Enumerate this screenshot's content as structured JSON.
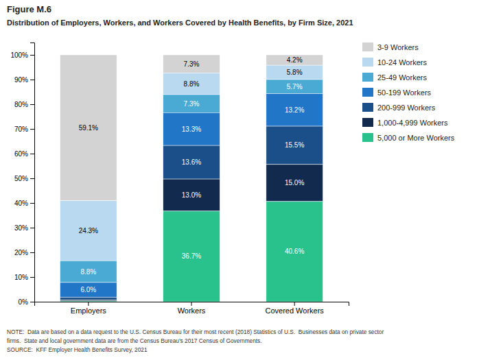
{
  "chart_data": {
    "type": "bar",
    "stacked": true,
    "title": "Figure M.6",
    "subtitle": "Distribution of Employers, Workers, and Workers Covered by Health Benefits, by Firm Size, 2021",
    "annotations": [
      "NOTE:  Data are based on a data request to the U.S. Census Bureau for their most recent (2018) Statistics of U.S.  Businesses data on private sector",
      "firms.  State and local government data are from the Census Bureau’s 2017 Census of Governments.",
      "SOURCE:  KFF Employer Health Benefits Survey, 2021"
    ],
    "categories": [
      "Employers",
      "Workers",
      "Covered Workers"
    ],
    "series": [
      {
        "name": "3-9 Workers",
        "color": "#d3d3d3",
        "values": [
          59.1,
          7.3,
          4.2
        ],
        "value_labels": [
          "59.1%",
          "7.3%",
          "4.2%"
        ]
      },
      {
        "name": "10-24 Workers",
        "color": "#b8d9f0",
        "values": [
          24.3,
          8.8,
          5.8
        ],
        "value_labels": [
          "24.3%",
          "8.8%",
          "5.8%"
        ]
      },
      {
        "name": "25-49 Workers",
        "color": "#4baad4",
        "values": [
          8.8,
          7.3,
          5.7
        ],
        "value_labels": [
          "8.8%",
          "7.3%",
          "5.7%"
        ]
      },
      {
        "name": "50-199 Workers",
        "color": "#2176c7",
        "values": [
          6.0,
          13.3,
          13.2
        ],
        "value_labels": [
          "6.0%",
          "13.3%",
          "13.2%"
        ]
      },
      {
        "name": "200-999 Workers",
        "color": "#1a4f8a",
        "values": [
          1.0,
          13.6,
          15.5
        ],
        "value_labels": [
          null,
          "13.6%",
          "15.5%"
        ]
      },
      {
        "name": "1,000-4,999 Workers",
        "color": "#122a4e",
        "values": [
          0.5,
          13.0,
          15.0
        ],
        "value_labels": [
          null,
          "13.0%",
          "15.0%"
        ]
      },
      {
        "name": "5,000 or More Workers",
        "color": "#29c18c",
        "values": [
          0.3,
          36.7,
          40.6
        ],
        "value_labels": [
          null,
          "36.7%",
          "40.6%"
        ]
      }
    ],
    "ylim": [
      0,
      105
    ],
    "yticks": [
      {
        "value": 0,
        "label": "0%"
      },
      {
        "value": 10,
        "label": "10%"
      },
      {
        "value": 20,
        "label": "20%"
      },
      {
        "value": 30,
        "label": "30%"
      },
      {
        "value": 40,
        "label": "40%"
      },
      {
        "value": 50,
        "label": "50%"
      },
      {
        "value": 60,
        "label": "60%"
      },
      {
        "value": 70,
        "label": "70%"
      },
      {
        "value": 80,
        "label": "80%"
      },
      {
        "value": 90,
        "label": "90%"
      },
      {
        "value": 100,
        "label": "100%"
      }
    ],
    "data_labels": true,
    "grid": false,
    "legend": "right"
  }
}
